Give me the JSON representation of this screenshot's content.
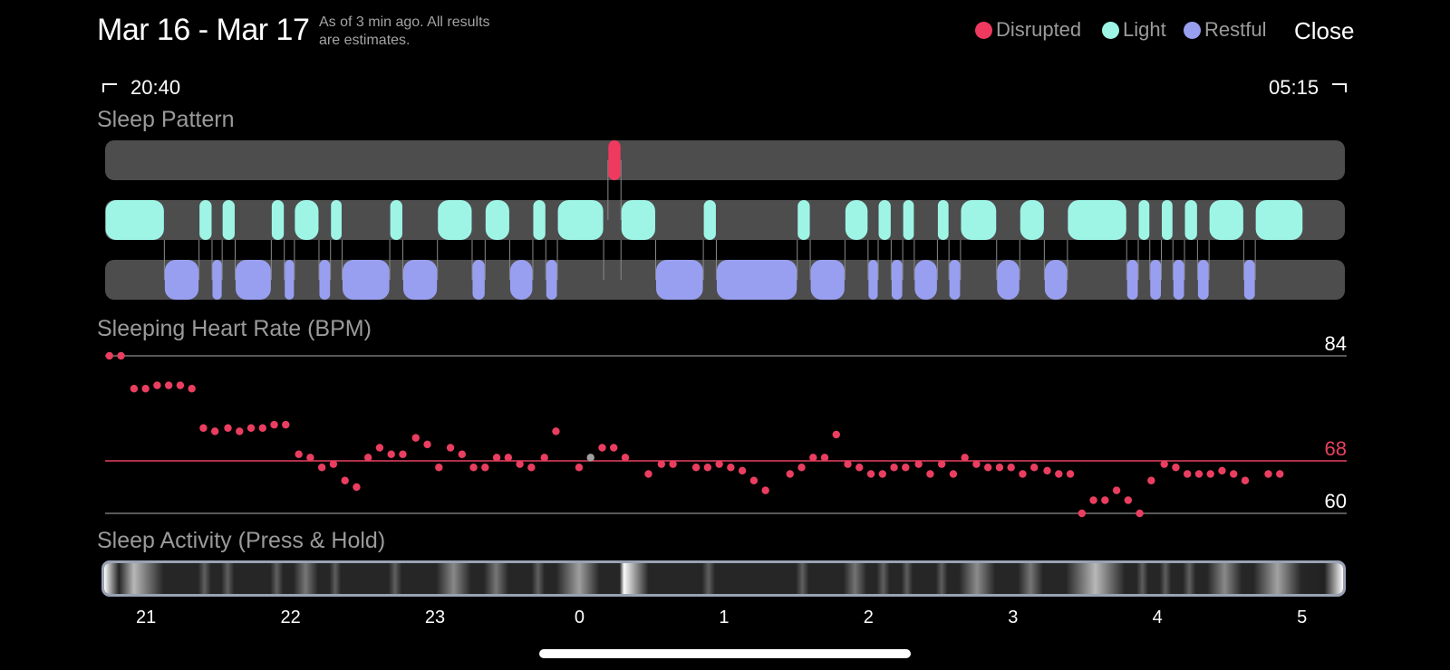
{
  "header": {
    "title": "Mar 16 - Mar 17",
    "note_line1": "As of 3 min ago. All results",
    "note_line2": "are estimates.",
    "close_label": "Close"
  },
  "legend": [
    {
      "label": "Disrupted",
      "color": "#f0395f",
      "icon": "disrupted-dot"
    },
    {
      "label": "Light",
      "color": "#9ef5e6",
      "icon": "light-dot"
    },
    {
      "label": "Restful",
      "color": "#999ff0",
      "icon": "restful-dot"
    }
  ],
  "range": {
    "start": "20:40",
    "end": "05:15"
  },
  "sections": {
    "sleep_pattern": "Sleep Pattern",
    "heart_rate": "Sleeping Heart Rate (BPM)",
    "activity": "Sleep Activity (Press & Hold)"
  },
  "colors": {
    "disrupted": "#f0395f",
    "light": "#9ef5e6",
    "restful": "#999ff0",
    "track": "#4d4d4d",
    "hr_dot": "#ea3e60",
    "avg_line": "#e8405f"
  },
  "chart_data": [
    {
      "type": "timeline",
      "name": "Sleep Pattern",
      "x_axis": "hours since 20:40",
      "segments": {
        "disrupted": [
          [
            3.48,
            3.57
          ]
        ],
        "light": [
          [
            0.0,
            0.41
          ],
          [
            0.65,
            0.74
          ],
          [
            0.81,
            0.9
          ],
          [
            1.15,
            1.24
          ],
          [
            1.31,
            1.48
          ],
          [
            1.56,
            1.64
          ],
          [
            1.97,
            2.06
          ],
          [
            2.3,
            2.54
          ],
          [
            2.63,
            2.8
          ],
          [
            2.96,
            3.05
          ],
          [
            3.13,
            3.45
          ],
          [
            3.57,
            3.81
          ],
          [
            4.14,
            4.23
          ],
          [
            4.79,
            4.88
          ],
          [
            5.12,
            5.28
          ],
          [
            5.35,
            5.44
          ],
          [
            5.52,
            5.6
          ],
          [
            5.76,
            5.84
          ],
          [
            5.92,
            6.17
          ],
          [
            6.33,
            6.5
          ],
          [
            6.66,
            7.07
          ],
          [
            7.15,
            7.23
          ],
          [
            7.31,
            7.39
          ],
          [
            7.47,
            7.56
          ],
          [
            7.64,
            7.88
          ],
          [
            7.96,
            8.29
          ]
        ],
        "restful": [
          [
            0.41,
            0.65
          ],
          [
            0.74,
            0.81
          ],
          [
            0.9,
            1.15
          ],
          [
            1.24,
            1.31
          ],
          [
            1.48,
            1.56
          ],
          [
            1.64,
            1.97
          ],
          [
            2.06,
            2.3
          ],
          [
            2.54,
            2.63
          ],
          [
            2.8,
            2.96
          ],
          [
            3.05,
            3.13
          ],
          [
            3.81,
            4.14
          ],
          [
            4.23,
            4.79
          ],
          [
            4.88,
            5.12
          ],
          [
            5.28,
            5.35
          ],
          [
            5.44,
            5.52
          ],
          [
            5.6,
            5.76
          ],
          [
            5.84,
            5.92
          ],
          [
            6.17,
            6.33
          ],
          [
            6.5,
            6.66
          ],
          [
            7.07,
            7.15
          ],
          [
            7.23,
            7.31
          ],
          [
            7.39,
            7.47
          ],
          [
            7.56,
            7.64
          ],
          [
            7.88,
            7.96
          ]
        ]
      }
    },
    {
      "type": "scatter",
      "name": "Sleeping Heart Rate (BPM)",
      "y_ticks": [
        84,
        68,
        60
      ],
      "avg_label": "68",
      "max_label": "84",
      "min_label": "60",
      "ylim": [
        60,
        84
      ],
      "x_axis": "hours since 20:40",
      "points": [
        [
          0.03,
          84
        ],
        [
          0.11,
          84
        ],
        [
          0.2,
          79
        ],
        [
          0.28,
          79
        ],
        [
          0.36,
          79.5
        ],
        [
          0.44,
          79.5
        ],
        [
          0.52,
          79.5
        ],
        [
          0.6,
          79
        ],
        [
          0.68,
          73
        ],
        [
          0.76,
          72.5
        ],
        [
          0.85,
          73
        ],
        [
          0.93,
          72.5
        ],
        [
          1.01,
          73
        ],
        [
          1.09,
          73
        ],
        [
          1.17,
          73.5
        ],
        [
          1.25,
          73.5
        ],
        [
          1.34,
          69
        ],
        [
          1.42,
          68.5
        ],
        [
          1.5,
          67
        ],
        [
          1.58,
          67.5
        ],
        [
          1.66,
          65
        ],
        [
          1.74,
          64
        ],
        [
          1.82,
          68.5
        ],
        [
          1.9,
          70
        ],
        [
          1.98,
          69
        ],
        [
          2.06,
          69
        ],
        [
          2.15,
          71.5
        ],
        [
          2.23,
          70.5
        ],
        [
          2.31,
          67
        ],
        [
          2.39,
          70
        ],
        [
          2.47,
          69
        ],
        [
          2.55,
          67
        ],
        [
          2.63,
          67
        ],
        [
          2.71,
          68.5
        ],
        [
          2.79,
          68.5
        ],
        [
          2.87,
          67.5
        ],
        [
          2.95,
          67
        ],
        [
          3.04,
          68.5
        ],
        [
          3.12,
          72.5
        ],
        [
          3.28,
          67
        ],
        [
          3.44,
          70
        ],
        [
          3.52,
          70
        ],
        [
          3.6,
          68.5
        ],
        [
          3.76,
          66
        ],
        [
          3.85,
          67.5
        ],
        [
          3.93,
          67.5
        ],
        [
          4.09,
          67
        ],
        [
          4.17,
          67
        ],
        [
          4.25,
          67.5
        ],
        [
          4.33,
          67
        ],
        [
          4.41,
          66.5
        ],
        [
          4.49,
          65
        ],
        [
          4.57,
          63.5
        ],
        [
          4.74,
          66
        ],
        [
          4.82,
          67
        ],
        [
          4.9,
          68.5
        ],
        [
          4.98,
          68.5
        ],
        [
          5.06,
          72
        ],
        [
          5.14,
          67.5
        ],
        [
          5.22,
          67
        ],
        [
          5.3,
          66
        ],
        [
          5.38,
          66
        ],
        [
          5.46,
          67
        ],
        [
          5.54,
          67
        ],
        [
          5.63,
          67.5
        ],
        [
          5.71,
          66
        ],
        [
          5.79,
          67.5
        ],
        [
          5.87,
          66
        ],
        [
          5.95,
          68.5
        ],
        [
          6.03,
          67.5
        ],
        [
          6.11,
          67
        ],
        [
          6.19,
          67
        ],
        [
          6.27,
          67
        ],
        [
          6.35,
          66
        ],
        [
          6.43,
          67
        ],
        [
          6.52,
          66.5
        ],
        [
          6.6,
          66
        ],
        [
          6.68,
          66
        ],
        [
          6.76,
          60
        ],
        [
          6.84,
          62
        ],
        [
          6.92,
          62
        ],
        [
          7.0,
          63.5
        ],
        [
          7.08,
          62
        ],
        [
          7.16,
          60
        ],
        [
          7.24,
          65
        ],
        [
          7.33,
          67.5
        ],
        [
          7.41,
          67
        ],
        [
          7.49,
          66
        ],
        [
          7.57,
          66
        ],
        [
          7.65,
          66
        ],
        [
          7.73,
          66.5
        ],
        [
          7.81,
          66
        ],
        [
          7.89,
          65
        ],
        [
          8.05,
          66
        ],
        [
          8.13,
          66
        ]
      ],
      "grey_points": [
        [
          3.36,
          68.5
        ]
      ]
    },
    {
      "type": "heatmap",
      "name": "Sleep Activity (Press & Hold)",
      "x_ticks": [
        "21",
        "22",
        "23",
        "0",
        "1",
        "2",
        "3",
        "4",
        "5"
      ]
    }
  ]
}
